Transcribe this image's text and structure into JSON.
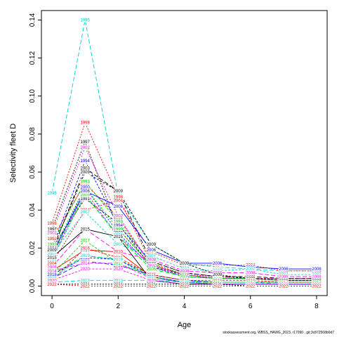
{
  "footer_text": "stockassessment.org, WBSS_HAWG_2023, r17090 , git:3c872568b0d7",
  "chart_data": {
    "type": "line",
    "xlabel": "Age",
    "ylabel": "Selectivity fleet D",
    "xlim": [
      -0.32,
      8.32
    ],
    "ylim": [
      -0.005,
      0.145
    ],
    "x_ticks": [
      0,
      2,
      4,
      6,
      8
    ],
    "y_ticks": [
      0.0,
      0.02,
      0.04,
      0.06,
      0.08,
      0.1,
      0.12,
      0.14
    ],
    "y_tick_labels": [
      "0.00",
      "0.02",
      "0.04",
      "0.06",
      "0.08",
      "0.10",
      "0.12",
      "0.14"
    ],
    "grid": false,
    "legend": "none (year labels drawn on lines)",
    "ages": [
      0,
      1,
      2,
      3,
      4,
      5,
      6,
      7,
      8
    ],
    "series": [
      {
        "name": "1991",
        "color": "#000000",
        "dash": "3,2",
        "values": [
          0.02,
          0.046,
          0.033,
          0.01,
          0.006,
          0.004,
          0.004,
          0.003,
          0.003
        ]
      },
      {
        "name": "1992",
        "color": "#FF0000",
        "dash": "3,2",
        "values": [
          0.025,
          0.054,
          0.036,
          0.011,
          0.006,
          0.004,
          0.004,
          0.003,
          0.003
        ]
      },
      {
        "name": "1993",
        "color": "#00CD00",
        "dash": "3,2",
        "values": [
          0.022,
          0.055,
          0.034,
          0.012,
          0.006,
          0.004,
          0.004,
          0.003,
          0.003
        ]
      },
      {
        "name": "1994",
        "color": "#0000FF",
        "dash": "3,2",
        "values": [
          0.02,
          0.066,
          0.032,
          0.013,
          0.007,
          0.005,
          0.004,
          0.004,
          0.004
        ]
      },
      {
        "name": "1995",
        "color": "#00CDCD",
        "dash": "6,3",
        "values": [
          0.049,
          0.14,
          0.048,
          0.022,
          0.012,
          0.01,
          0.009,
          0.008,
          0.008
        ]
      },
      {
        "name": "1996",
        "color": "#FF00FF",
        "dash": "3,2",
        "values": [
          0.014,
          0.05,
          0.026,
          0.011,
          0.005,
          0.004,
          0.004,
          0.003,
          0.003
        ]
      },
      {
        "name": "1997",
        "color": "#000000",
        "dash": "2,2",
        "values": [
          0.03,
          0.076,
          0.03,
          0.011,
          0.006,
          0.004,
          0.004,
          0.003,
          0.003
        ]
      },
      {
        "name": "1998",
        "color": "#FF0000",
        "dash": "2,2",
        "values": [
          0.033,
          0.086,
          0.047,
          0.012,
          0.006,
          0.005,
          0.004,
          0.004,
          0.004
        ]
      },
      {
        "name": "1999",
        "color": "#00CD00",
        "dash": "2,2",
        "values": [
          0.018,
          0.052,
          0.03,
          0.011,
          0.006,
          0.004,
          0.004,
          0.003,
          0.003
        ]
      },
      {
        "name": "2000",
        "color": "#0000FF",
        "dash": "2,2",
        "values": [
          0.016,
          0.052,
          0.028,
          0.01,
          0.005,
          0.004,
          0.004,
          0.003,
          0.003
        ]
      },
      {
        "name": "2001",
        "color": "#00CDCD",
        "dash": "2,2",
        "values": [
          0.014,
          0.048,
          0.027,
          0.01,
          0.005,
          0.004,
          0.004,
          0.003,
          0.003
        ]
      },
      {
        "name": "2002",
        "color": "#FF00FF",
        "dash": "2,2",
        "values": [
          0.028,
          0.073,
          0.037,
          0.011,
          0.006,
          0.004,
          0.004,
          0.003,
          0.003
        ]
      },
      {
        "name": "2003",
        "color": "#000000",
        "dash": "6,3",
        "values": [
          0.018,
          0.062,
          0.05,
          0.013,
          0.007,
          0.005,
          0.005,
          0.004,
          0.004
        ]
      },
      {
        "name": "2004",
        "color": "#FF0000",
        "dash": "2,2",
        "values": [
          0.012,
          0.04,
          0.045,
          0.018,
          0.011,
          0.011,
          0.011,
          0.008,
          0.008
        ]
      },
      {
        "name": "2005",
        "color": "#00CD00",
        "dash": "6,3",
        "values": [
          0.016,
          0.048,
          0.026,
          0.009,
          0.005,
          0.004,
          0.004,
          0.003,
          0.003
        ]
      },
      {
        "name": "2006",
        "color": "#0000FF",
        "dash": "0",
        "values": [
          0.017,
          0.05,
          0.042,
          0.019,
          0.012,
          0.012,
          0.01,
          0.009,
          0.009
        ]
      },
      {
        "name": "2007",
        "color": "#00CDCD",
        "dash": "3,2",
        "values": [
          0.017,
          0.039,
          0.022,
          0.016,
          0.009,
          0.008,
          0.009,
          0.006,
          0.006
        ]
      },
      {
        "name": "2008",
        "color": "#FF00FF",
        "dash": "6,3",
        "values": [
          0.01,
          0.03,
          0.018,
          0.014,
          0.008,
          0.007,
          0.007,
          0.005,
          0.005
        ]
      },
      {
        "name": "2009",
        "color": "#000000",
        "dash": "3,2",
        "values": [
          0.019,
          0.06,
          0.05,
          0.022,
          0.012,
          0.006,
          0.004,
          0.003,
          0.003
        ]
      },
      {
        "name": "2010",
        "color": "#FF0000",
        "dash": "0",
        "values": [
          0.008,
          0.019,
          0.018,
          0.005,
          0.002,
          0.001,
          0.001,
          0.001,
          0.001
        ]
      },
      {
        "name": "2011",
        "color": "#00CD00",
        "dash": "6,3",
        "values": [
          0.006,
          0.016,
          0.014,
          0.006,
          0.003,
          0.002,
          0.002,
          0.002,
          0.002
        ]
      },
      {
        "name": "2012",
        "color": "#0000FF",
        "dash": "6,3",
        "values": [
          0.004,
          0.013,
          0.011,
          0.006,
          0.003,
          0.002,
          0.002,
          0.002,
          0.002
        ]
      },
      {
        "name": "2013",
        "color": "#00CDCD",
        "dash": "6,3",
        "values": [
          0.002,
          0.003,
          0.003,
          0.003,
          0.002,
          0.002,
          0.002,
          0.001,
          0.001
        ]
      },
      {
        "name": "2014",
        "color": "#FF00FF",
        "dash": "6,3",
        "values": [
          0.008,
          0.012,
          0.012,
          0.004,
          0.002,
          0.001,
          0.001,
          0.001,
          0.001
        ]
      },
      {
        "name": "2015",
        "color": "#000000",
        "dash": "0",
        "values": [
          0.015,
          0.03,
          0.026,
          0.003,
          0.001,
          0.001,
          0.001,
          0.001,
          0.001
        ]
      },
      {
        "name": "2016",
        "color": "#FF0000",
        "dash": "3,2",
        "values": [
          0.003,
          0.02,
          0.015,
          0.006,
          0.003,
          0.003,
          0.003,
          0.002,
          0.002
        ]
      },
      {
        "name": "2017",
        "color": "#00CD00",
        "dash": "3,2",
        "values": [
          0.006,
          0.024,
          0.012,
          0.005,
          0.002,
          0.002,
          0.002,
          0.002,
          0.002
        ]
      },
      {
        "name": "2018",
        "color": "#0000FF",
        "dash": "3,2",
        "values": [
          0.006,
          0.015,
          0.014,
          0.005,
          0.002,
          0.001,
          0.001,
          0.001,
          0.001
        ]
      },
      {
        "name": "2019",
        "color": "#00CDCD",
        "dash": "3,2",
        "values": [
          0.004,
          0.016,
          0.014,
          0.004,
          0.002,
          0.001,
          0.001,
          0.001,
          0.001
        ]
      },
      {
        "name": "2020",
        "color": "#FF00FF",
        "dash": "3,2",
        "values": [
          0.003,
          0.009,
          0.009,
          0.003,
          0.001,
          0.001,
          0.001,
          0.001,
          0.001
        ]
      },
      {
        "name": "2021",
        "color": "#000000",
        "dash": "2,2",
        "values": [
          0.001,
          0.001,
          0.001,
          0.001,
          0.001,
          0.001,
          0.0,
          0.0,
          0.0
        ]
      },
      {
        "name": "2022",
        "color": "#FF0000",
        "dash": "2,2",
        "values": [
          0.001,
          0.0,
          0.0,
          0.0,
          0.0,
          0.0,
          0.0,
          0.0,
          0.0
        ]
      }
    ]
  }
}
